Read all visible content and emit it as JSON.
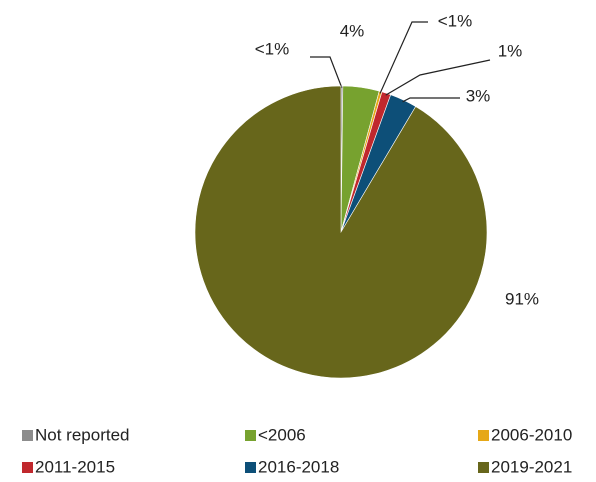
{
  "chart_data": {
    "type": "pie",
    "categories": [
      "Not reported",
      "<2006",
      "2006-2010",
      "2011-2015",
      "2016-2018",
      "2019-2021"
    ],
    "values": [
      0.2,
      4,
      0.3,
      1,
      3,
      91
    ],
    "value_labels": [
      "<1%",
      "4%",
      "<1%",
      "1%",
      "3%",
      "91%"
    ],
    "colors": [
      "#8c8c8c",
      "#77a22f",
      "#e6a817",
      "#c0282d",
      "#0d4f78",
      "#67661b"
    ],
    "legend": "bottom"
  }
}
